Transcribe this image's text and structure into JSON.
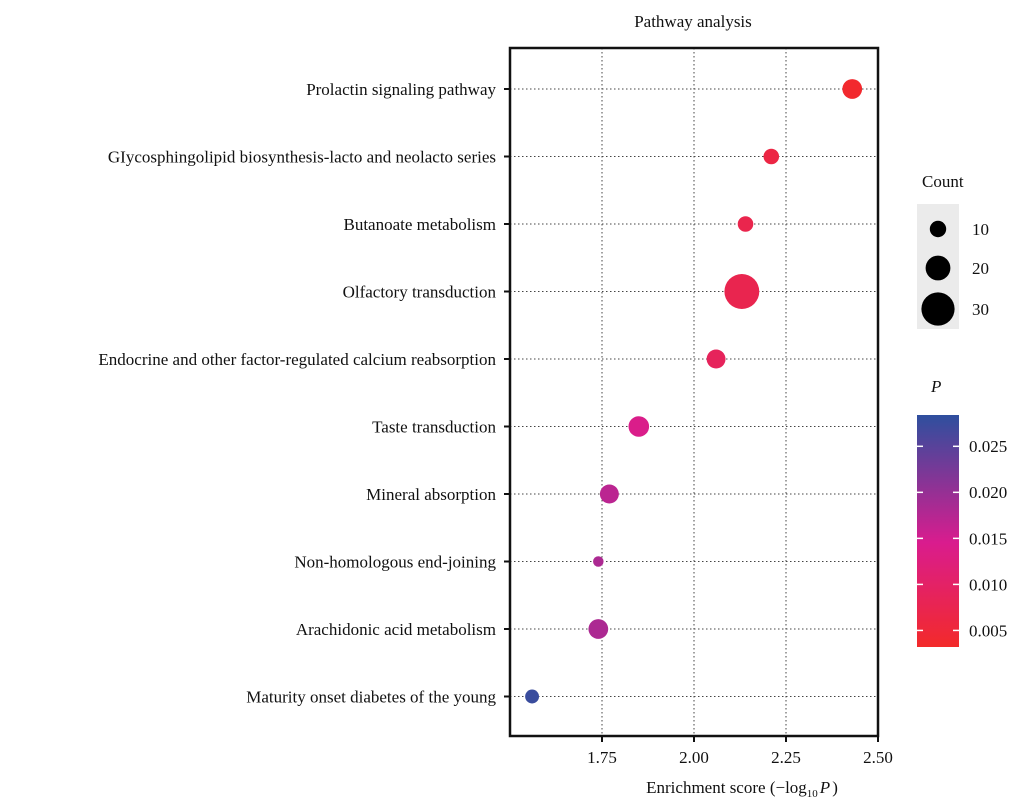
{
  "chart_data": {
    "type": "scatter",
    "title": "Pathway analysis",
    "xlabel_prefix": "Enrichment score (",
    "xlabel_log": "−log",
    "xlabel_sub": "10",
    "xlabel_var": "P",
    "xlabel_suffix": ")",
    "xlim": [
      1.5,
      2.5
    ],
    "xticks": [
      1.75,
      2.0,
      2.25,
      2.5
    ],
    "xtick_labels": [
      "1.75",
      "2.00",
      "2.25",
      "2.50"
    ],
    "grid": true,
    "categories": [
      "Prolactin signaling pathway",
      "GIycosphingolipid biosynthesis-lacto and neolacto series",
      "Butanoate metabolism",
      "Olfactory transduction",
      "Endocrine and other factor-regulated calcium reabsorption",
      "Taste transduction",
      "Mineral absorption",
      "Non-homologous end-joining",
      "Arachidonic acid metabolism",
      "Maturity onset diabetes of the young"
    ],
    "points": [
      {
        "x": 2.43,
        "count": 14,
        "p": 0.0037
      },
      {
        "x": 2.21,
        "count": 9,
        "p": 0.0062
      },
      {
        "x": 2.14,
        "count": 9,
        "p": 0.0072
      },
      {
        "x": 2.13,
        "count": 32,
        "p": 0.0074
      },
      {
        "x": 2.06,
        "count": 13,
        "p": 0.0087
      },
      {
        "x": 1.85,
        "count": 15,
        "p": 0.0141
      },
      {
        "x": 1.77,
        "count": 13,
        "p": 0.017
      },
      {
        "x": 1.74,
        "count": 3,
        "p": 0.0182
      },
      {
        "x": 1.74,
        "count": 14,
        "p": 0.0182
      },
      {
        "x": 1.56,
        "count": 7,
        "p": 0.0275
      }
    ],
    "legend_size": {
      "title": "Count",
      "values": [
        10,
        20,
        30
      ],
      "labels": [
        "10",
        "20",
        "30"
      ]
    },
    "legend_color": {
      "title": "P",
      "range": [
        0.0032,
        0.0284
      ],
      "ticks": [
        0.025,
        0.02,
        0.015,
        0.01,
        0.005
      ],
      "tick_labels": [
        "0.025",
        "0.020",
        "0.015",
        "0.010",
        "0.005"
      ],
      "low_color": "#f32a2a",
      "mid_color": "#d91c8e",
      "high_color": "#2e4f9e"
    },
    "legend_placement": "right"
  }
}
